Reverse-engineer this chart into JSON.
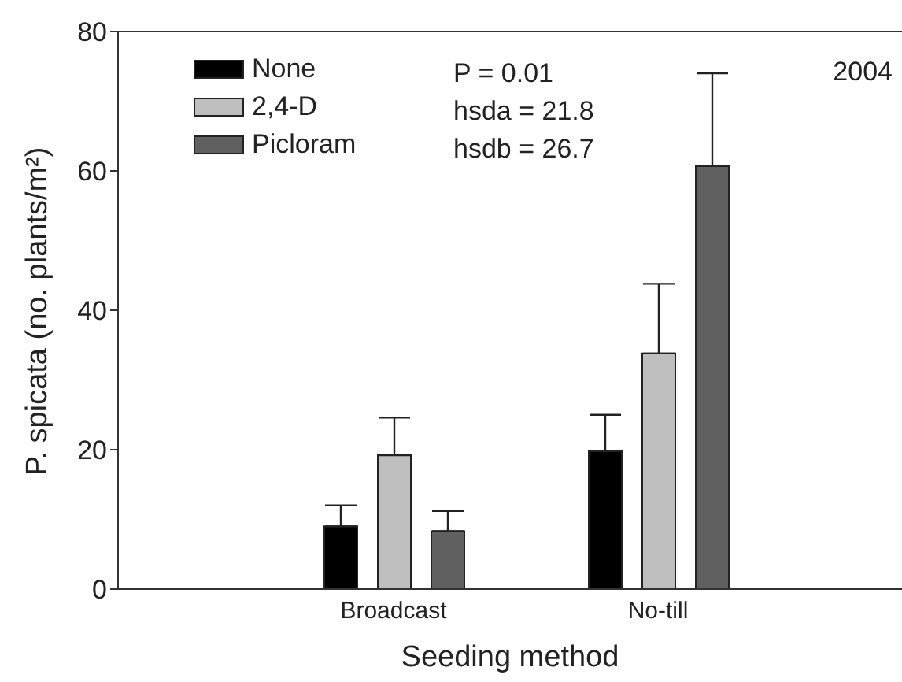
{
  "chart_data": {
    "type": "bar",
    "xlabel": "Seeding method",
    "ylabel": "P. spicata (no. plants/m²)",
    "categories": [
      "Broadcast",
      "No-till"
    ],
    "series": [
      {
        "name": "None",
        "color": "#000000",
        "values": [
          9,
          19.8
        ],
        "errors": [
          [
            9,
            12
          ],
          [
            19.8,
            25
          ]
        ]
      },
      {
        "name": "2,4-D",
        "color": "#bfbfbf",
        "values": [
          19.2,
          33.8
        ],
        "errors": [
          [
            19.2,
            24.6
          ],
          [
            33.8,
            43.8
          ]
        ]
      },
      {
        "name": "Picloram",
        "color": "#606060",
        "values": [
          8.3,
          60.7
        ],
        "errors": [
          [
            8.3,
            11.2
          ],
          [
            60.7,
            74
          ]
        ]
      }
    ],
    "ylim": [
      0,
      80
    ],
    "yticks": [
      0,
      20,
      40,
      60,
      80
    ],
    "grid": false,
    "legend": "top left",
    "annotations": [
      "P = 0.01",
      "hsda = 21.8",
      "hsdb = 26.7",
      "2004"
    ]
  }
}
